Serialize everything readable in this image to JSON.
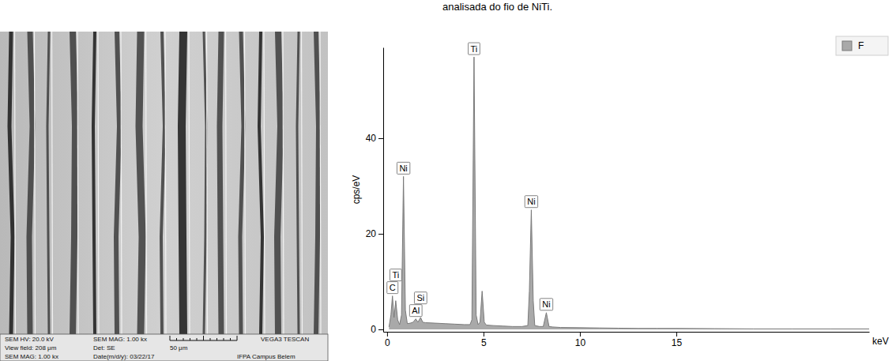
{
  "caption": "analisada do fio de NiTi.",
  "sem_image": {
    "info": [
      [
        "SEM HV: 20.0 kV",
        "SEM MAG: 1.00 kx",
        "VEGA3 TESCAN"
      ],
      [
        "View field: 208 μm",
        "Det: SE",
        "50 μm"
      ],
      [
        "SEM MAG: 1.00 kx",
        "Date(m/d/y): 03/22/17",
        "IFPA Campus Belem"
      ]
    ]
  },
  "chart_data": {
    "type": "area",
    "x_label": "keV",
    "y_label": "cps/eV",
    "x": [
      0.1,
      0.2,
      0.28,
      0.36,
      0.45,
      0.55,
      0.65,
      0.75,
      0.85,
      0.95,
      1.05,
      1.2,
      1.35,
      1.49,
      1.6,
      1.74,
      1.85,
      2.0,
      2.5,
      3.0,
      3.5,
      4.0,
      4.3,
      4.4,
      4.51,
      4.62,
      4.72,
      4.82,
      4.93,
      5.04,
      5.15,
      5.5,
      6.0,
      6.5,
      7.0,
      7.3,
      7.38,
      7.48,
      7.58,
      7.66,
      7.9,
      8.1,
      8.26,
      8.4,
      8.6,
      9.0,
      10,
      11,
      12,
      13,
      14,
      15,
      17,
      19,
      21,
      23,
      25
    ],
    "series": [
      {
        "name": "F",
        "color": "#a9a9a9",
        "values": [
          0.5,
          3,
          7,
          2.5,
          6,
          2,
          1,
          3,
          32,
          4,
          1.2,
          1.3,
          1.5,
          2.2,
          1.5,
          2.5,
          1.5,
          1.4,
          1.3,
          1.2,
          1.1,
          1.0,
          1.0,
          2,
          57,
          3,
          1.0,
          1.5,
          8,
          1.5,
          0.9,
          0.8,
          0.7,
          0.6,
          0.6,
          0.8,
          8,
          25,
          6,
          0.8,
          0.6,
          0.6,
          3.5,
          0.6,
          0.5,
          0.4,
          0.35,
          0.3,
          0.25,
          0.2,
          0.2,
          0.2,
          0.15,
          0.1,
          0.1,
          0.1,
          0.1
        ]
      }
    ],
    "xlim": [
      -0.2,
      25
    ],
    "xticks": [
      0,
      5,
      10,
      15
    ],
    "ylim": [
      -0.5,
      59
    ],
    "yticks": [
      0,
      20,
      40
    ],
    "legend": "top-right",
    "grid": false,
    "annotations": [
      {
        "text": "C",
        "x": 0.28,
        "y": 7
      },
      {
        "text": "Ti",
        "x": 0.45,
        "y": 6
      },
      {
        "text": "Ni",
        "x": 0.85,
        "y": 32
      },
      {
        "text": "Al",
        "x": 1.49,
        "y": 2.2
      },
      {
        "text": "Si",
        "x": 1.74,
        "y": 2.5
      },
      {
        "text": "Ti",
        "x": 4.51,
        "y": 57
      },
      {
        "text": "Ni",
        "x": 7.48,
        "y": 25
      },
      {
        "text": "Ni",
        "x": 8.26,
        "y": 3.5
      }
    ]
  }
}
